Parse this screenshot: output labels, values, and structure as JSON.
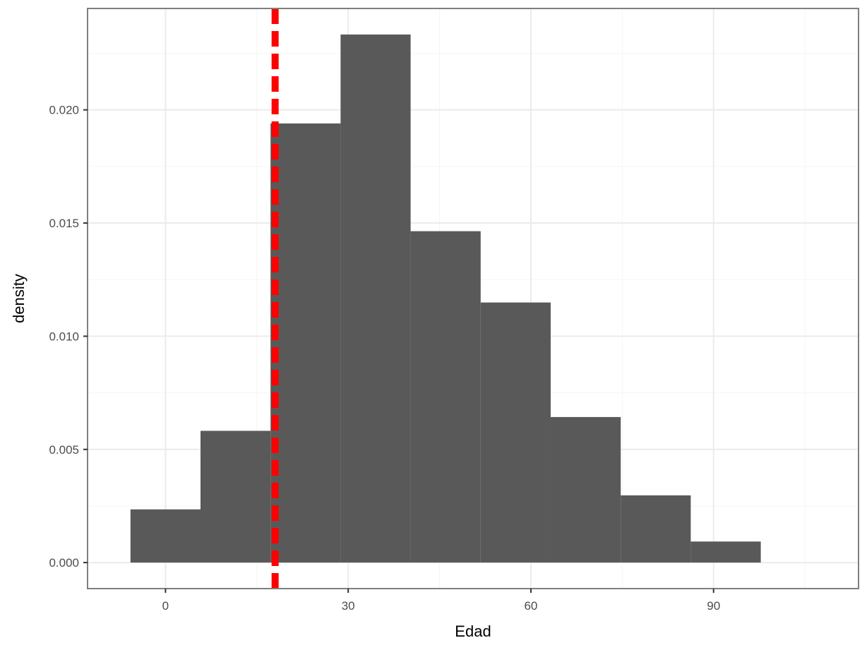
{
  "chart_data": {
    "type": "bar",
    "title": "",
    "xlabel": "Edad",
    "ylabel": "density",
    "xlim": [
      -12.8,
      113.8
    ],
    "ylim": [
      -0.00115,
      0.02448
    ],
    "x_ticks": [
      0,
      30,
      60,
      90
    ],
    "x_tick_labels": [
      "0",
      "30",
      "60",
      "90"
    ],
    "y_ticks": [
      0.0,
      0.005,
      0.01,
      0.015,
      0.02
    ],
    "y_tick_labels": [
      "0.000",
      "0.005",
      "0.010",
      "0.015",
      "0.020"
    ],
    "grid": true,
    "bins": [
      {
        "x0": -5.75,
        "x1": 5.75,
        "density": 0.00235
      },
      {
        "x0": 5.75,
        "x1": 17.25,
        "density": 0.00582
      },
      {
        "x0": 17.25,
        "x1": 28.75,
        "density": 0.0194
      },
      {
        "x0": 28.75,
        "x1": 40.25,
        "density": 0.02333
      },
      {
        "x0": 40.25,
        "x1": 51.75,
        "density": 0.01464
      },
      {
        "x0": 51.75,
        "x1": 63.25,
        "density": 0.01149
      },
      {
        "x0": 63.25,
        "x1": 74.75,
        "density": 0.00643
      },
      {
        "x0": 74.75,
        "x1": 86.25,
        "density": 0.00297
      },
      {
        "x0": 86.25,
        "x1": 97.75,
        "density": 0.00093
      }
    ],
    "reference_line": {
      "x": 18,
      "style": "dashed",
      "color": "#ff0000"
    },
    "bar_color": "#595959",
    "panel_border_color": "#7f7f7f",
    "grid_color": "#ebebeb"
  }
}
